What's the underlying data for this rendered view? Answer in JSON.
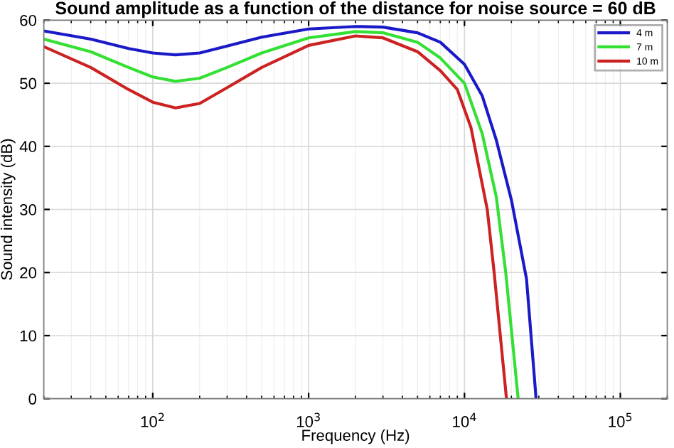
{
  "chart_data": {
    "type": "line",
    "title": "Sound amplitude as a function of the distance for noise source = 60 dB",
    "xlabel": "Frequency (Hz)",
    "ylabel": "Sound intensity (dB)",
    "log": "x",
    "grid": true,
    "legend": "top right",
    "marker": "none",
    "line_style": "solid",
    "xlim": [
      20,
      200000
    ],
    "xticks": [
      {
        "value": 100,
        "label": "10$^{2}$"
      },
      {
        "value": 1000,
        "label": "10$^{3}$"
      },
      {
        "value": 10000,
        "label": "10$^{4}$"
      },
      {
        "value": 100000,
        "label": "10$^{5}$"
      }
    ],
    "ylim": [
      0,
      60
    ],
    "yticks": [
      0,
      10,
      20,
      30,
      40,
      50,
      60
    ],
    "series": [
      {
        "name": "4 m",
        "color": "#1a1ac8",
        "x": [
          20,
          40,
          70,
          100,
          140,
          200,
          300,
          500,
          1000,
          2000,
          3000,
          5000,
          7000,
          10000,
          13000,
          16000,
          20000,
          25000,
          28800
        ],
        "values": [
          58.3,
          57.0,
          55.5,
          54.8,
          54.5,
          54.8,
          55.9,
          57.3,
          58.6,
          59.0,
          58.9,
          58.0,
          56.5,
          53.0,
          48,
          41,
          31.5,
          19,
          0
        ]
      },
      {
        "name": "7 m",
        "color": "#33e033",
        "x": [
          20,
          40,
          70,
          100,
          140,
          200,
          300,
          500,
          1000,
          2000,
          3000,
          5000,
          7000,
          10000,
          13000,
          16000,
          18400,
          22100
        ],
        "values": [
          57.0,
          55,
          52.5,
          51,
          50.3,
          50.8,
          52.5,
          54.8,
          57.2,
          58.2,
          58.0,
          56.5,
          54,
          50,
          42,
          32,
          20,
          0
        ]
      },
      {
        "name": "10 m",
        "color": "#cc2222",
        "x": [
          20,
          40,
          70,
          100,
          140,
          200,
          300,
          500,
          1000,
          2000,
          3000,
          5000,
          7000,
          9000,
          11000,
          14000,
          15500,
          18600
        ],
        "values": [
          55.8,
          52.5,
          49,
          47,
          46.1,
          46.8,
          49.3,
          52.5,
          56,
          57.5,
          57.2,
          55,
          52,
          49,
          43,
          30,
          20,
          0
        ]
      }
    ]
  }
}
